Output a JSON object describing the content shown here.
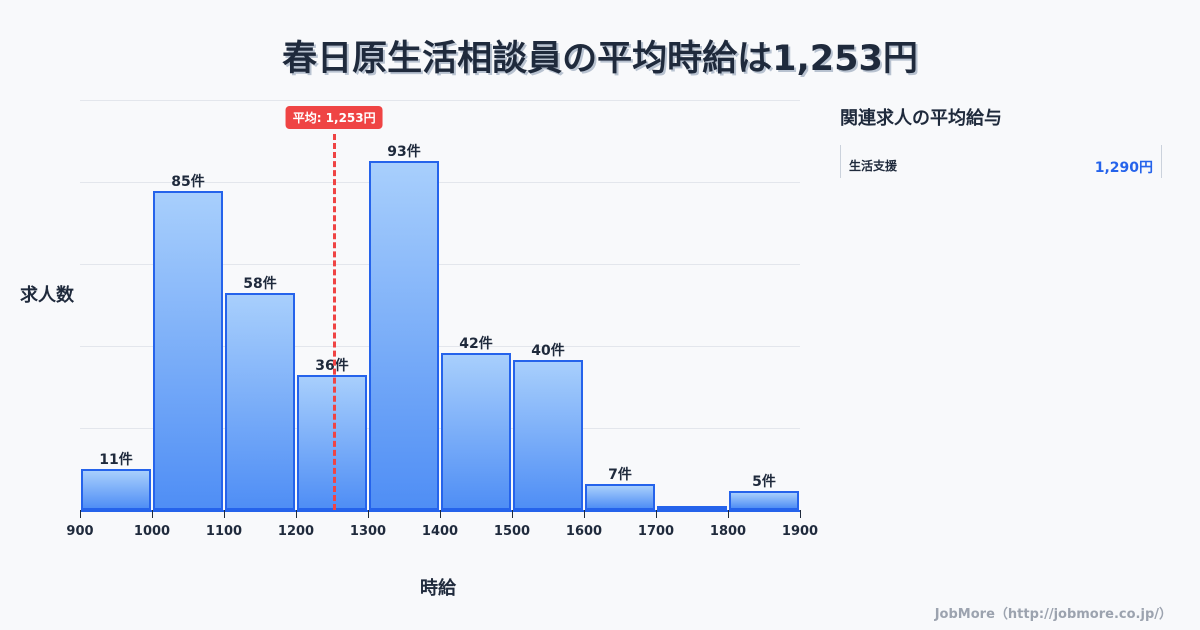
{
  "title": "春日原生活相談員の平均時給は1,253円",
  "chart_data": {
    "type": "bar",
    "title": "春日原生活相談員の平均時給は1,253円",
    "xlabel": "時給",
    "ylabel": "求人数",
    "bins": [
      [
        900,
        1000
      ],
      [
        1000,
        1100
      ],
      [
        1100,
        1200
      ],
      [
        1200,
        1300
      ],
      [
        1300,
        1400
      ],
      [
        1400,
        1500
      ],
      [
        1500,
        1600
      ],
      [
        1600,
        1700
      ],
      [
        1700,
        1800
      ],
      [
        1800,
        1900
      ]
    ],
    "categories": [
      "900-1000",
      "1000-1100",
      "1100-1200",
      "1200-1300",
      "1300-1400",
      "1400-1500",
      "1500-1600",
      "1600-1700",
      "1700-1800",
      "1800-1900"
    ],
    "values": [
      11,
      85,
      58,
      36,
      93,
      42,
      40,
      7,
      1,
      5
    ],
    "value_labels": [
      "11件",
      "85件",
      "58件",
      "36件",
      "93件",
      "42件",
      "40件",
      "7件",
      "",
      "5件"
    ],
    "x_ticks": [
      "900",
      "1000",
      "1100",
      "1200",
      "1300",
      "1400",
      "1500",
      "1600",
      "1700",
      "1800",
      "1900"
    ],
    "xlim": [
      900,
      1900
    ],
    "grid": true,
    "average": {
      "value": 1253,
      "label": "平均: 1,253円",
      "color": "#ef4444"
    },
    "bar_color": "#4f8ef5",
    "bar_border_color": "#2563eb"
  },
  "sidebar": {
    "title": "関連求人の平均給与",
    "items": [
      {
        "name": "生活支援",
        "value": "1,290円"
      }
    ]
  },
  "footer": "JobMore（http://jobmore.co.jp/）"
}
